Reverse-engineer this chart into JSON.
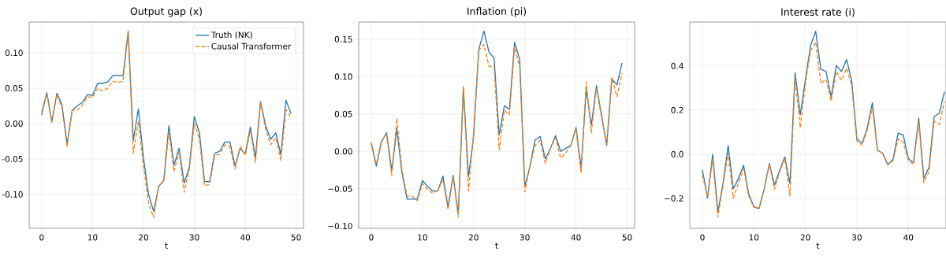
{
  "chart_data": [
    {
      "type": "line",
      "title": "Output gap (x)",
      "xlabel": "t",
      "x": [
        0,
        1,
        2,
        3,
        4,
        5,
        6,
        7,
        8,
        9,
        10,
        11,
        12,
        13,
        14,
        15,
        16,
        17,
        18,
        19,
        20,
        21,
        22,
        23,
        24,
        25,
        26,
        27,
        28,
        29,
        30,
        31,
        32,
        33,
        34,
        35,
        36,
        37,
        38,
        39,
        40,
        41,
        42,
        43,
        44,
        45,
        46,
        47,
        48,
        49
      ],
      "series": [
        {
          "name": "Truth (NK)",
          "color": "#1f77b4",
          "line_style": "solid",
          "values": [
            0.012,
            0.044,
            0.002,
            0.043,
            0.026,
            -0.029,
            0.019,
            0.025,
            0.03,
            0.041,
            0.04,
            0.057,
            0.057,
            0.059,
            0.068,
            0.068,
            0.068,
            0.13,
            -0.024,
            0.021,
            -0.048,
            -0.1,
            -0.124,
            -0.089,
            -0.08,
            -0.003,
            -0.059,
            -0.035,
            -0.084,
            -0.062,
            0.01,
            -0.013,
            -0.082,
            -0.082,
            -0.042,
            -0.039,
            -0.026,
            -0.026,
            -0.06,
            -0.035,
            -0.043,
            -0.005,
            -0.048,
            0.031,
            -0.003,
            -0.022,
            -0.013,
            -0.044,
            0.033,
            0.014
          ]
        },
        {
          "name": "Causal Transformer",
          "color": "#ff7f0e",
          "line_style": "dashed",
          "values": [
            0.016,
            0.043,
            0.003,
            0.041,
            0.022,
            -0.033,
            0.019,
            0.019,
            0.026,
            0.038,
            0.037,
            0.05,
            0.046,
            0.05,
            0.06,
            0.058,
            0.06,
            0.131,
            -0.042,
            0.003,
            -0.06,
            -0.112,
            -0.133,
            -0.087,
            -0.082,
            -0.012,
            -0.068,
            -0.04,
            -0.097,
            -0.065,
            0.0,
            -0.022,
            -0.088,
            -0.086,
            -0.045,
            -0.043,
            -0.03,
            -0.033,
            -0.064,
            -0.032,
            -0.045,
            -0.01,
            -0.055,
            0.03,
            -0.008,
            -0.03,
            -0.02,
            -0.052,
            0.02,
            0.008
          ]
        }
      ],
      "xlim": [
        -2.45,
        51.45
      ],
      "ylim": [
        -0.148,
        0.1435
      ],
      "xticks": [
        0,
        10,
        20,
        30,
        40,
        50
      ],
      "yticks": [
        {
          "value": -0.1,
          "label": "-0.10"
        },
        {
          "value": -0.05,
          "label": "-0.05"
        },
        {
          "value": 0.0,
          "label": "0.00"
        },
        {
          "value": 0.05,
          "label": "0.05"
        },
        {
          "value": 0.1,
          "label": "0.10"
        }
      ],
      "grid": true,
      "legend": "top right"
    },
    {
      "type": "line",
      "title": "Inflation (pi)",
      "xlabel": "t",
      "x": [
        0,
        1,
        2,
        3,
        4,
        5,
        6,
        7,
        8,
        9,
        10,
        11,
        12,
        13,
        14,
        15,
        16,
        17,
        18,
        19,
        20,
        21,
        22,
        23,
        24,
        25,
        26,
        27,
        28,
        29,
        30,
        31,
        32,
        33,
        34,
        35,
        36,
        37,
        38,
        39,
        40,
        41,
        42,
        43,
        44,
        45,
        46,
        47,
        48,
        49
      ],
      "series": [
        {
          "color": "#1f77b4",
          "line_style": "solid",
          "values": [
            0.011,
            -0.02,
            0.013,
            0.025,
            -0.026,
            0.03,
            -0.029,
            -0.064,
            -0.064,
            -0.064,
            -0.039,
            -0.047,
            -0.053,
            -0.053,
            -0.033,
            -0.075,
            -0.032,
            -0.084,
            0.085,
            -0.034,
            0.02,
            0.136,
            0.161,
            0.133,
            0.125,
            0.022,
            0.061,
            0.056,
            0.146,
            0.123,
            -0.047,
            -0.02,
            0.015,
            0.02,
            -0.01,
            0.004,
            0.021,
            0.0,
            0.004,
            0.008,
            0.032,
            -0.022,
            0.083,
            0.035,
            0.088,
            0.048,
            0.008,
            0.097,
            0.089,
            0.118
          ]
        },
        {
          "color": "#ff7f0e",
          "line_style": "dashed",
          "values": [
            0.012,
            -0.017,
            0.015,
            0.022,
            -0.033,
            0.044,
            -0.025,
            -0.06,
            -0.06,
            -0.066,
            -0.043,
            -0.051,
            -0.056,
            -0.052,
            -0.038,
            -0.078,
            -0.034,
            -0.088,
            0.087,
            -0.053,
            0.025,
            0.135,
            0.143,
            0.114,
            0.113,
            0.002,
            0.055,
            0.049,
            0.14,
            0.113,
            -0.054,
            -0.02,
            0.008,
            0.015,
            -0.016,
            0.004,
            0.018,
            -0.009,
            -0.002,
            0.008,
            0.03,
            -0.029,
            0.093,
            0.025,
            0.085,
            0.045,
            0.01,
            0.099,
            0.073,
            0.105
          ]
        }
      ],
      "xlim": [
        -2.45,
        51.45
      ],
      "ylim": [
        -0.103,
        0.173
      ],
      "xticks": [
        0,
        10,
        20,
        30,
        40,
        50
      ],
      "yticks": [
        {
          "value": -0.1,
          "label": "−0.10"
        },
        {
          "value": -0.05,
          "label": "−0.05"
        },
        {
          "value": 0.0,
          "label": "0.00"
        },
        {
          "value": 0.05,
          "label": "0.05"
        },
        {
          "value": 0.1,
          "label": "0.10"
        },
        {
          "value": 0.15,
          "label": "0.15"
        }
      ],
      "grid": true
    },
    {
      "type": "line",
      "title": "Interest rate (i)",
      "xlabel": "t",
      "x": [
        0,
        1,
        2,
        3,
        4,
        5,
        6,
        7,
        8,
        9,
        10,
        11,
        12,
        13,
        14,
        15,
        16,
        17,
        18,
        19,
        20,
        21,
        22,
        23,
        24,
        25,
        26,
        27,
        28,
        29,
        30,
        31,
        32,
        33,
        34,
        35,
        36,
        37,
        38,
        39,
        40,
        41,
        42,
        43,
        44,
        45,
        46,
        47
      ],
      "series": [
        {
          "color": "#1f77b4",
          "line_style": "solid",
          "values": [
            -0.071,
            -0.199,
            0.0,
            -0.262,
            -0.133,
            0.039,
            -0.157,
            -0.11,
            -0.05,
            -0.181,
            -0.238,
            -0.246,
            -0.157,
            -0.042,
            -0.139,
            -0.074,
            -0.012,
            -0.133,
            0.369,
            0.179,
            0.337,
            0.492,
            0.557,
            0.385,
            0.375,
            0.26,
            0.402,
            0.375,
            0.429,
            0.333,
            0.071,
            0.048,
            0.117,
            0.233,
            0.019,
            0.004,
            -0.048,
            -0.024,
            0.095,
            0.087,
            -0.02,
            -0.038,
            0.164,
            -0.11,
            -0.06,
            0.17,
            0.186,
            0.283
          ]
        },
        {
          "color": "#ff7f0e",
          "line_style": "dashed",
          "values": [
            -0.095,
            -0.195,
            -0.02,
            -0.285,
            -0.14,
            0.005,
            -0.2,
            -0.13,
            -0.065,
            -0.19,
            -0.24,
            -0.245,
            -0.16,
            -0.045,
            -0.16,
            -0.08,
            -0.02,
            -0.19,
            0.35,
            0.12,
            0.32,
            0.47,
            0.508,
            0.32,
            0.34,
            0.24,
            0.375,
            0.335,
            0.39,
            0.31,
            0.06,
            0.04,
            0.11,
            0.21,
            0.015,
            0.005,
            -0.045,
            -0.03,
            0.07,
            0.055,
            -0.03,
            -0.045,
            0.15,
            -0.13,
            -0.08,
            0.15,
            0.135,
            0.24
          ]
        }
      ],
      "xlim": [
        -2.45,
        47.3
      ],
      "ylim": [
        -0.336,
        0.599
      ],
      "xticks": [
        0,
        10,
        20,
        30,
        40
      ],
      "yticks": [
        {
          "value": -0.2,
          "label": "−0.2"
        },
        {
          "value": 0.0,
          "label": "0.0"
        },
        {
          "value": 0.2,
          "label": "0.2"
        },
        {
          "value": 0.4,
          "label": "0.4"
        }
      ],
      "grid": true
    }
  ]
}
